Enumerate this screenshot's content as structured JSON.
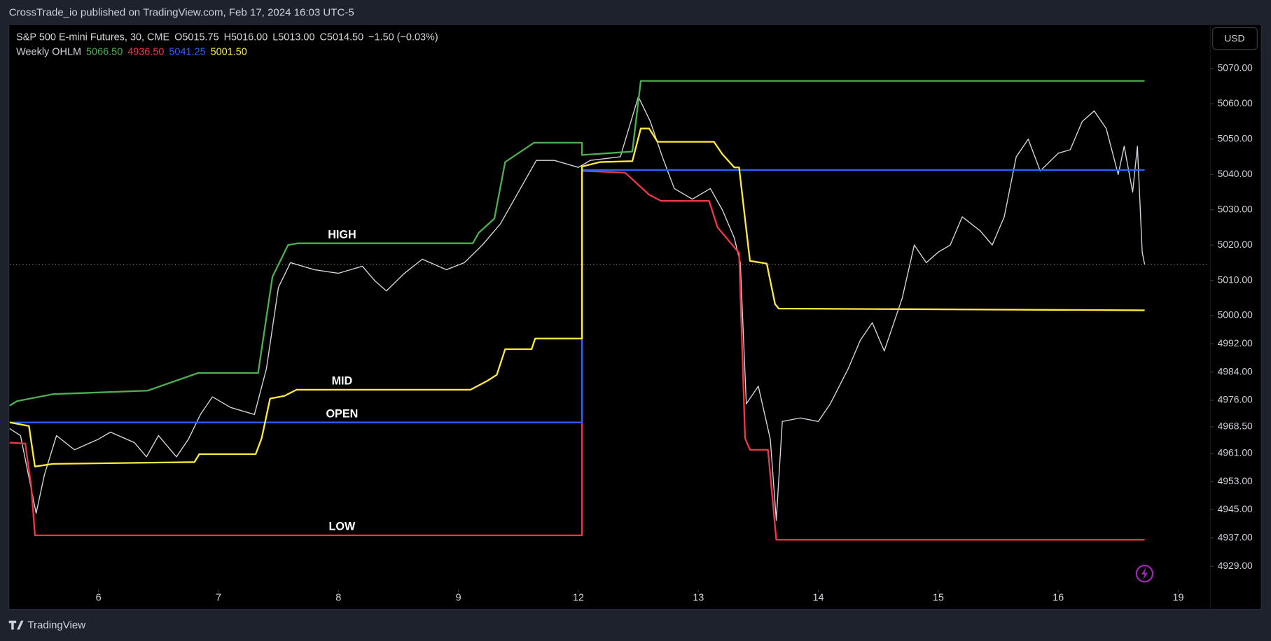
{
  "header": {
    "attribution": "CrossTrade_io published on TradingView.com, Feb 17, 2024 16:03 UTC-5",
    "currency": "USD",
    "brand": "TradingView"
  },
  "chart_data": {
    "type": "line",
    "symbol": "S&P 500 E-mini Futures, 30, CME",
    "ohlc": [
      "O5015.75",
      "H5016.00",
      "L5013.00",
      "C5014.50",
      "−1.50 (−0.03%)"
    ],
    "indicator": {
      "name": "Weekly OHLM",
      "values": [
        {
          "value": 5066.5,
          "label": "5066.50"
        },
        {
          "value": 4936.5,
          "label": "4936.50"
        },
        {
          "value": 5041.25,
          "label": "5041.25"
        },
        {
          "value": 5001.5,
          "label": "5001.50"
        }
      ]
    },
    "xlim": [
      -0.74,
      9.26
    ],
    "ylim": [
      4923,
      5082.5
    ],
    "xticks": [
      {
        "value": 0,
        "label": "6"
      },
      {
        "value": 1,
        "label": "7"
      },
      {
        "value": 2,
        "label": "8"
      },
      {
        "value": 3,
        "label": "9"
      },
      {
        "value": 4,
        "label": "12"
      },
      {
        "value": 5,
        "label": "13"
      },
      {
        "value": 6,
        "label": "14"
      },
      {
        "value": 7,
        "label": "15"
      },
      {
        "value": 8,
        "label": "16"
      },
      {
        "value": 9,
        "label": "19"
      }
    ],
    "yticks": [
      {
        "value": 5070,
        "label": "5070.00"
      },
      {
        "value": 5060,
        "label": "5060.00"
      },
      {
        "value": 5050,
        "label": "5050.00"
      },
      {
        "value": 5040,
        "label": "5040.00"
      },
      {
        "value": 5030,
        "label": "5030.00"
      },
      {
        "value": 5020,
        "label": "5020.00"
      },
      {
        "value": 5010,
        "label": "5010.00"
      },
      {
        "value": 5000,
        "label": "5000.00"
      },
      {
        "value": 4992,
        "label": "4992.00"
      },
      {
        "value": 4984,
        "label": "4984.00"
      },
      {
        "value": 4976,
        "label": "4976.00"
      },
      {
        "value": 4968.5,
        "label": "4968.50"
      },
      {
        "value": 4961,
        "label": "4961.00"
      },
      {
        "value": 4953,
        "label": "4953.00"
      },
      {
        "value": 4945,
        "label": "4945.00"
      },
      {
        "value": 4937,
        "label": "4937.00"
      },
      {
        "value": 4929,
        "label": "4929.00"
      }
    ],
    "grid": false,
    "price_line": 5014.5,
    "price": {
      "color": "#d1d4dc",
      "x": [
        -0.74,
        -0.65,
        -0.52,
        -0.45,
        -0.35,
        -0.2,
        0,
        0.1,
        0.3,
        0.4,
        0.5,
        0.65,
        0.75,
        0.85,
        0.95,
        1.1,
        1.3,
        1.4,
        1.5,
        1.6,
        1.8,
        2.0,
        2.2,
        2.3,
        2.4,
        2.55,
        2.7,
        2.9,
        3.05,
        3.2,
        3.35,
        3.5,
        3.65,
        3.8,
        4.0,
        4.1,
        4.35,
        4.5,
        4.6,
        4.7,
        4.8,
        4.95,
        5.1,
        5.2,
        5.3,
        5.35,
        5.4,
        5.5,
        5.6,
        5.65,
        5.7,
        5.85,
        6.0,
        6.1,
        6.25,
        6.35,
        6.45,
        6.55,
        6.6,
        6.7,
        6.8,
        6.9,
        7.0,
        7.1,
        7.2,
        7.35,
        7.45,
        7.55,
        7.65,
        7.75,
        7.85,
        8.0,
        8.1,
        8.2,
        8.3,
        8.4,
        8.5,
        8.55,
        8.62,
        8.66,
        8.7,
        8.72
      ],
      "values": [
        4968,
        4966,
        4944,
        4955,
        4966,
        4962,
        4965,
        4967,
        4964,
        4960,
        4966,
        4960,
        4965,
        4972,
        4977,
        4974,
        4972,
        4985,
        5008,
        5015,
        5013,
        5012,
        5014,
        5010,
        5007,
        5012,
        5016,
        5013,
        5015,
        5020,
        5026,
        5035,
        5044,
        5044,
        5042,
        5044,
        5045,
        5062,
        5055,
        5045,
        5036,
        5033,
        5036,
        5030,
        5022,
        5015,
        4975,
        4980,
        4965,
        4942,
        4970,
        4971,
        4970,
        4975,
        4985,
        4993,
        4998,
        4990,
        4995,
        5005,
        5020,
        5015,
        5018,
        5020,
        5028,
        5024,
        5020,
        5028,
        5045,
        5050,
        5041,
        5046,
        5047,
        5055,
        5058,
        5053,
        5040,
        5048,
        5035,
        5048,
        5018,
        5014.5
      ]
    },
    "series": [
      {
        "name": "HIGH",
        "color": "#4caf50",
        "x": [
          -0.74,
          -0.68,
          -0.38,
          0.41,
          0.83,
          1.33,
          1.45,
          1.58,
          1.66,
          3.12,
          3.17,
          3.3,
          3.39,
          3.63,
          4.03,
          4.03,
          4.45,
          4.52,
          8.72
        ],
        "values": [
          4974.5,
          4975.75,
          4977.75,
          4978.75,
          4983.75,
          4983.75,
          5011,
          5020,
          5020.5,
          5020.5,
          5023.5,
          5027.5,
          5043.5,
          5049,
          5049,
          5045.5,
          5046.5,
          5066.5,
          5066.5
        ]
      },
      {
        "name": "LOW",
        "color": "#f23645",
        "x": [
          -0.74,
          -0.61,
          -0.56,
          -0.53,
          4.03,
          4.03,
          4.39,
          4.59,
          4.69,
          5.09,
          5.16,
          5.34,
          5.39,
          5.43,
          5.58,
          5.65,
          8.72
        ],
        "values": [
          4964,
          4963.75,
          4951.5,
          4937.75,
          4937.75,
          5041,
          5040.5,
          5034.25,
          5032.5,
          5032.5,
          5025,
          5017.75,
          4965.25,
          4962,
          4962,
          4936.5,
          4936.5
        ]
      },
      {
        "name": "OPEN",
        "color": "#2962ff",
        "x": [
          -0.74,
          4.03,
          4.03,
          8.72
        ],
        "values": [
          4969.75,
          4969.75,
          5041.25,
          5041.25
        ]
      },
      {
        "name": "MID",
        "color": "#ffeb3b",
        "x": [
          -0.74,
          -0.58,
          -0.53,
          -0.38,
          0.8,
          0.84,
          1.31,
          1.36,
          1.43,
          1.55,
          1.65,
          3.1,
          3.24,
          3.32,
          3.39,
          3.61,
          3.64,
          4.03,
          4.03,
          4.18,
          4.45,
          4.52,
          4.59,
          4.66,
          5.13,
          5.2,
          5.3,
          5.34,
          5.39,
          5.43,
          5.57,
          5.64,
          5.67,
          8.72
        ],
        "values": [
          4969.75,
          4968.75,
          4957.25,
          4958,
          4958.5,
          4960.75,
          4960.75,
          4965.25,
          4976.5,
          4977.25,
          4979,
          4979,
          4981.5,
          4983.25,
          4990.5,
          4990.5,
          4993.5,
          4993.5,
          5042.25,
          5043.5,
          5043.75,
          5053,
          5053,
          5049.25,
          5049.25,
          5045.75,
          5042,
          5042,
          5027.25,
          5015.5,
          5014.75,
          5003.25,
          5002,
          5001.5
        ]
      }
    ]
  }
}
